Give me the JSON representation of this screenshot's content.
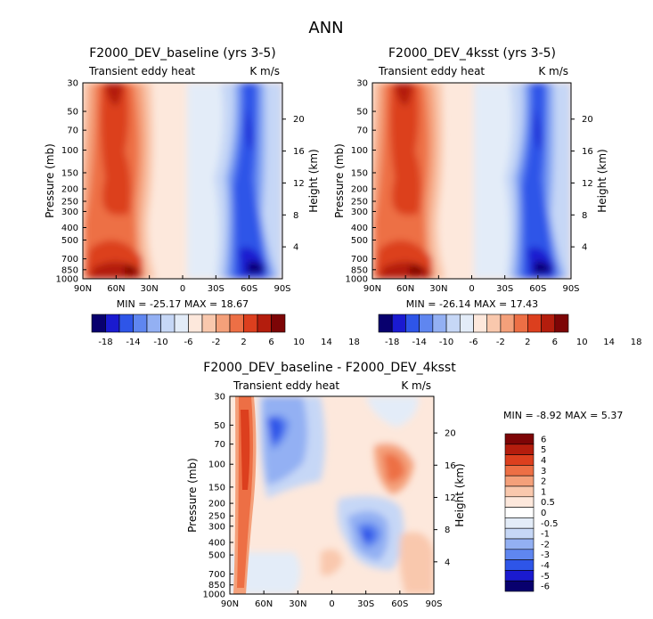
{
  "figure_title": "ANN",
  "chart_data": [
    {
      "type": "heatmap",
      "title": "F2000_DEV_baseline (yrs 3-5)",
      "subtitle_left": "Transient eddy heat",
      "subtitle_right": "K m/s",
      "ylabel": "Pressure (mb)",
      "ylabel_right": "Height (km)",
      "x_ticks": [
        "90N",
        "60N",
        "30N",
        "0",
        "30S",
        "60S",
        "90S"
      ],
      "y_ticks": [
        "30",
        "50",
        "70",
        "100",
        "150",
        "200",
        "250",
        "300",
        "400",
        "500",
        "700",
        "850",
        "1000"
      ],
      "height_ticks": [
        "20",
        "16",
        "12",
        "8",
        "4"
      ],
      "stats": "MIN = -25.17   MAX = 18.67",
      "min": -25.17,
      "max": 18.67,
      "colorbar_labels": [
        "-18",
        "-14",
        "-10",
        "-6",
        "-2",
        "2",
        "6",
        "10",
        "14",
        "18"
      ]
    },
    {
      "type": "heatmap",
      "title": "F2000_DEV_4ksst (yrs 3-5)",
      "subtitle_left": "Transient eddy heat",
      "subtitle_right": "K m/s",
      "ylabel": "Pressure (mb)",
      "ylabel_right": "Height (km)",
      "x_ticks": [
        "90N",
        "60N",
        "30N",
        "0",
        "30S",
        "60S",
        "90S"
      ],
      "y_ticks": [
        "30",
        "50",
        "70",
        "100",
        "150",
        "200",
        "250",
        "300",
        "400",
        "500",
        "700",
        "850",
        "1000"
      ],
      "height_ticks": [
        "20",
        "16",
        "12",
        "8",
        "4"
      ],
      "stats": "MIN = -26.14   MAX = 17.43",
      "min": -26.14,
      "max": 17.43,
      "colorbar_labels": [
        "-18",
        "-14",
        "-10",
        "-6",
        "-2",
        "2",
        "6",
        "10",
        "14",
        "18"
      ]
    },
    {
      "type": "heatmap",
      "title": "F2000_DEV_baseline - F2000_DEV_4ksst",
      "subtitle_left": "Transient eddy heat",
      "subtitle_right": "K m/s",
      "ylabel": "Pressure (mb)",
      "ylabel_right": "Height (km)",
      "x_ticks": [
        "90N",
        "60N",
        "30N",
        "0",
        "30S",
        "60S",
        "90S"
      ],
      "y_ticks": [
        "30",
        "50",
        "70",
        "100",
        "150",
        "200",
        "250",
        "300",
        "400",
        "500",
        "700",
        "850",
        "1000"
      ],
      "height_ticks": [
        "20",
        "16",
        "12",
        "8",
        "4"
      ],
      "stats": "MIN =   -8.92   MAX =    5.37",
      "min": -8.92,
      "max": 5.37,
      "colorbar_labels": [
        "6",
        "5",
        "4",
        "3",
        "2",
        "1",
        "0.5",
        "0",
        "-0.5",
        "-1",
        "-2",
        "-3",
        "-4",
        "-5",
        "-6"
      ]
    }
  ],
  "colors": {
    "top_colorbar": [
      "#08006e",
      "#1a1ad0",
      "#2e55e8",
      "#5f86f0",
      "#93b0f3",
      "#c6d7f6",
      "#e3ecf8",
      "#fde8dc",
      "#f9c8ad",
      "#f4a07a",
      "#ed6f45",
      "#dc3f1e",
      "#b41d0d",
      "#7d0506"
    ],
    "diff_colorbar": [
      "#7d0506",
      "#b41d0d",
      "#dc3f1e",
      "#ed6f45",
      "#f4a07a",
      "#f9c8ad",
      "#fde8dc",
      "#ffffff",
      "#e3ecf8",
      "#c6d7f6",
      "#93b0f3",
      "#5f86f0",
      "#2e55e8",
      "#1a1ad0",
      "#08006e"
    ]
  }
}
